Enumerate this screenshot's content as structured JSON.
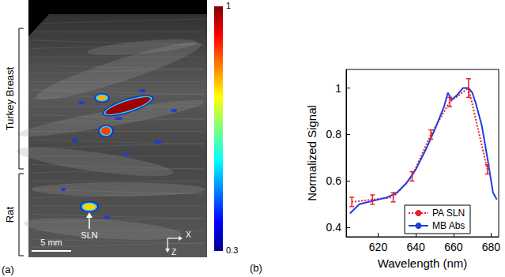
{
  "image_panel": {
    "panel_label": "(a)",
    "regions": [
      "Turkey Breast",
      "Rat"
    ],
    "annotation": "SLN",
    "scale_bar": "5 mm",
    "axes": [
      "X",
      "Z"
    ],
    "colorbar": {
      "range": [
        0.3,
        1
      ],
      "ticks": [
        0.3,
        1
      ]
    }
  },
  "chart_data": {
    "type": "line",
    "annotations": [
      "(b)"
    ],
    "x_label": "Wavelength (nm)",
    "y_label": "Normalized Signal",
    "xlim": [
      603,
      684
    ],
    "xticks": [
      620,
      640,
      660,
      680
    ],
    "ylim": [
      0.36,
      1.08
    ],
    "yticks": [
      0.4,
      0.6,
      0.8,
      1
    ],
    "grid": false,
    "legend": "lower right",
    "series": [
      {
        "name": "PA SLN",
        "color": "#e8202a",
        "line_style": "dotted",
        "x": [
          606,
          617,
          628,
          638,
          648,
          658,
          668,
          678
        ],
        "values": [
          0.51,
          0.52,
          0.53,
          0.62,
          0.8,
          0.94,
          1.0,
          0.65
        ],
        "errors": [
          0.02,
          0.02,
          0.02,
          0.02,
          0.02,
          0.02,
          0.04,
          0.02
        ]
      },
      {
        "name": "MB Abs",
        "color": "#1f3fdc",
        "line_style": "solid",
        "x": [
          605,
          610,
          615,
          620,
          625,
          630,
          635,
          640,
          645,
          650,
          655,
          657,
          659,
          662,
          665,
          668,
          670,
          672,
          675,
          678,
          681,
          683
        ],
        "values": [
          0.46,
          0.5,
          0.51,
          0.52,
          0.53,
          0.55,
          0.59,
          0.65,
          0.73,
          0.82,
          0.92,
          0.98,
          0.95,
          0.97,
          1.0,
          1.0,
          0.98,
          0.93,
          0.84,
          0.7,
          0.55,
          0.52
        ]
      }
    ]
  }
}
